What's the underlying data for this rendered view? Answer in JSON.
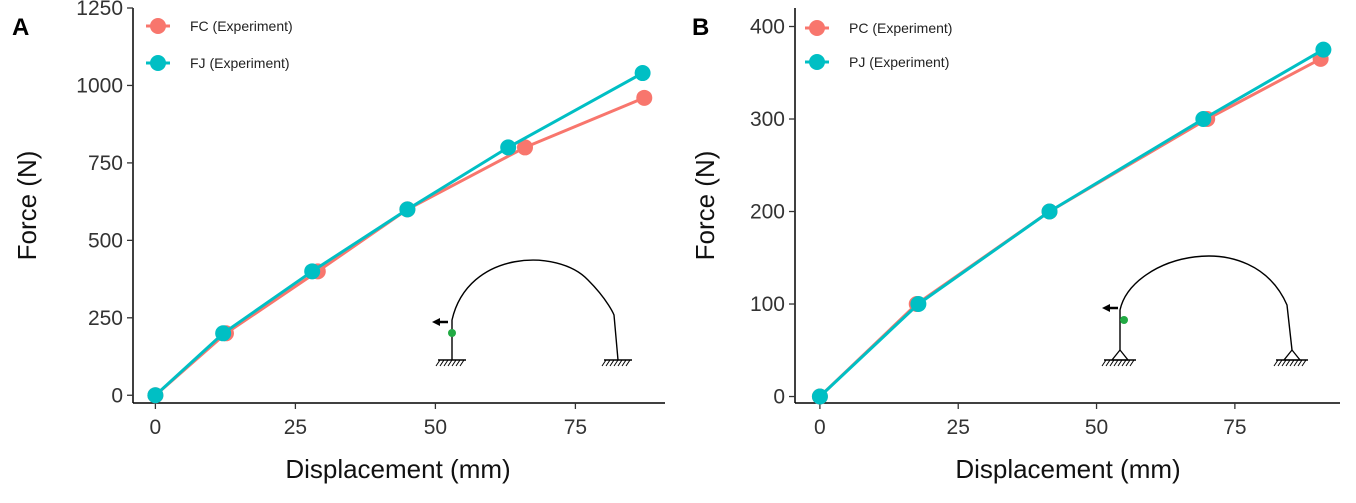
{
  "colors": {
    "series_1": "#F8766D",
    "series_2": "#00BFC4"
  },
  "chart_data": [
    {
      "panel_label": "A",
      "type": "line",
      "xlabel": "Displacement (mm)",
      "ylabel": "Force (N)",
      "xlim": [
        -4,
        91
      ],
      "ylim": [
        -25,
        1250
      ],
      "xticks": [
        0,
        25,
        50,
        75
      ],
      "yticks": [
        0,
        250,
        500,
        750,
        1000,
        1250
      ],
      "grid": false,
      "legend_position": "top-left",
      "series": [
        {
          "name": "FC (Experiment)",
          "color": "#F8766D",
          "x": [
            0,
            12.6,
            29,
            45,
            66,
            87.3
          ],
          "y": [
            0,
            200,
            400,
            600,
            800,
            960
          ]
        },
        {
          "name": "FJ (Experiment)",
          "color": "#00BFC4",
          "x": [
            0,
            12.1,
            28,
            45,
            63,
            87
          ],
          "y": [
            0,
            200,
            400,
            600,
            800,
            1040
          ]
        }
      ]
    },
    {
      "panel_label": "B",
      "type": "line",
      "xlabel": "Displacement (mm)",
      "ylabel": "Force (N)",
      "xlim": [
        -4.5,
        94
      ],
      "ylim": [
        -7,
        420
      ],
      "xticks": [
        0,
        25,
        50,
        75
      ],
      "yticks": [
        0,
        100,
        200,
        300,
        400
      ],
      "grid": false,
      "legend_position": "top-left",
      "series": [
        {
          "name": "PC (Experiment)",
          "color": "#F8766D",
          "x": [
            0,
            17.5,
            41.5,
            70,
            90.5
          ],
          "y": [
            0,
            100,
            200,
            300,
            365
          ]
        },
        {
          "name": "PJ (Experiment)",
          "color": "#00BFC4",
          "x": [
            0,
            17.8,
            41.5,
            69.3,
            91
          ],
          "y": [
            0,
            100,
            200,
            300,
            375
          ]
        }
      ]
    }
  ]
}
